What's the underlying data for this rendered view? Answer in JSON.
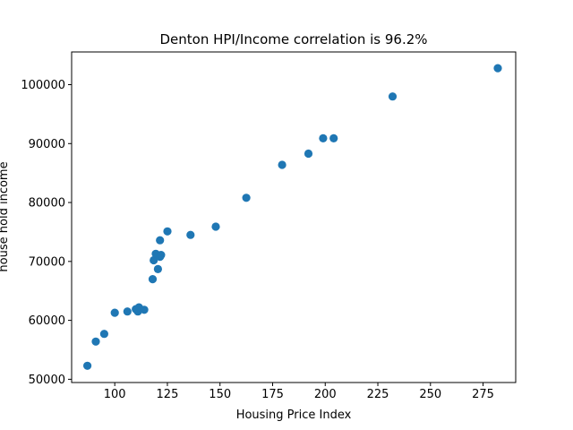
{
  "chart_data": {
    "type": "scatter",
    "title": "Denton HPI/Income correlation  is 96.2%",
    "xlabel": "Housing Price Index",
    "ylabel": "house hold income",
    "xlim": [
      79.5,
      290.5
    ],
    "ylim": [
      49450,
      105550
    ],
    "xticks": [
      100,
      125,
      150,
      175,
      200,
      225,
      250,
      275
    ],
    "xtick_labels": [
      "100",
      "125",
      "150",
      "175",
      "200",
      "225",
      "250",
      "275"
    ],
    "yticks": [
      50000,
      60000,
      70000,
      80000,
      90000,
      100000
    ],
    "ytick_labels": [
      "50000",
      "60000",
      "70000",
      "80000",
      "90000",
      "100000"
    ],
    "grid": false,
    "marker_color": "#1f77b4",
    "points": [
      {
        "x": 87,
        "y": 52300
      },
      {
        "x": 91,
        "y": 56400
      },
      {
        "x": 95,
        "y": 57700
      },
      {
        "x": 100,
        "y": 61300
      },
      {
        "x": 106,
        "y": 61500
      },
      {
        "x": 110,
        "y": 61900
      },
      {
        "x": 111,
        "y": 61500
      },
      {
        "x": 111.5,
        "y": 62200
      },
      {
        "x": 114,
        "y": 61800
      },
      {
        "x": 118,
        "y": 67000
      },
      {
        "x": 118.5,
        "y": 70200
      },
      {
        "x": 119.5,
        "y": 71300
      },
      {
        "x": 120.5,
        "y": 68700
      },
      {
        "x": 121.5,
        "y": 70800
      },
      {
        "x": 122,
        "y": 71100
      },
      {
        "x": 121.5,
        "y": 73600
      },
      {
        "x": 125,
        "y": 75100
      },
      {
        "x": 136,
        "y": 74500
      },
      {
        "x": 148,
        "y": 75900
      },
      {
        "x": 162.5,
        "y": 80800
      },
      {
        "x": 179.5,
        "y": 86400
      },
      {
        "x": 192,
        "y": 88300
      },
      {
        "x": 199,
        "y": 90900
      },
      {
        "x": 204,
        "y": 90900
      },
      {
        "x": 232,
        "y": 98000
      },
      {
        "x": 282,
        "y": 102800
      }
    ]
  }
}
